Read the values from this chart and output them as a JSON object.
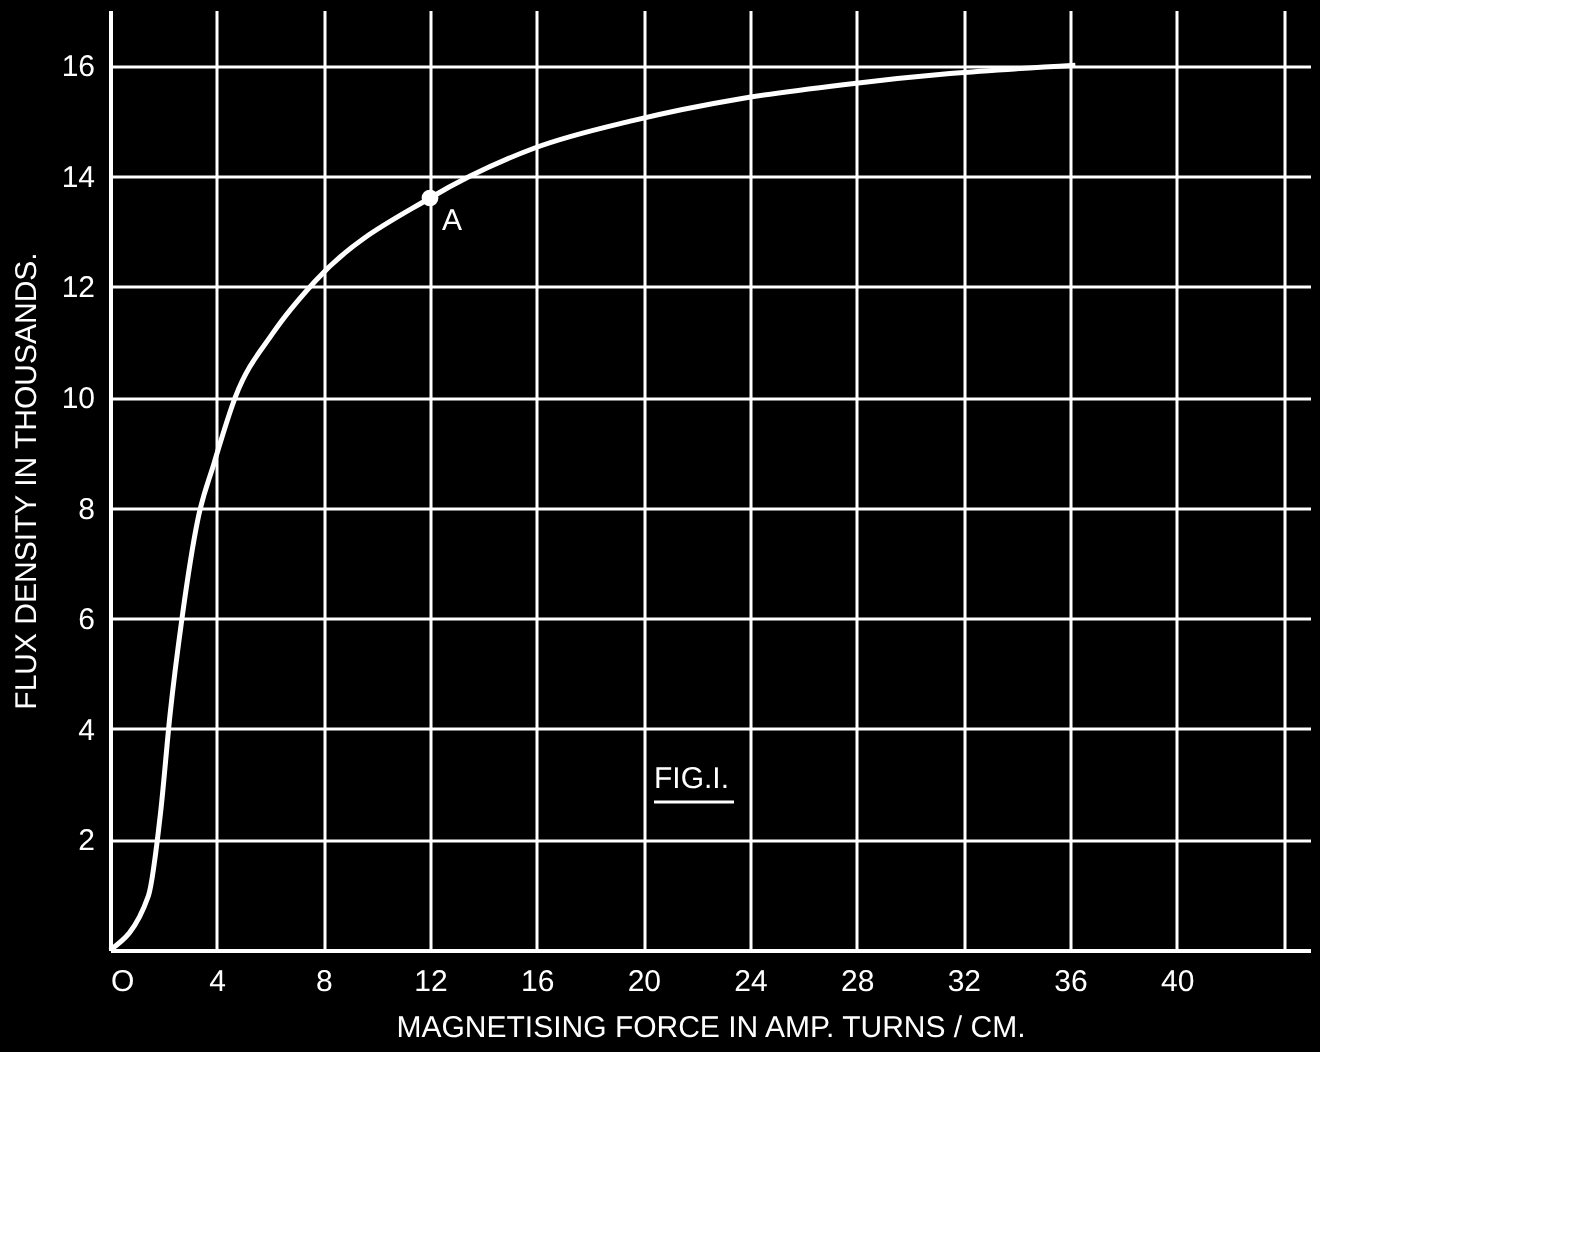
{
  "chart_data": {
    "type": "line",
    "xlabel": "MAGNETISING  FORCE  IN  AMP.  TURNS / CM.",
    "ylabel": "FLUX  DENSITY  IN  THOUSANDS.",
    "series": [
      {
        "color": "#ffffff",
        "x": [
          0,
          1.44,
          1.9,
          2.25,
          2.7,
          3.3,
          3.9,
          4.7,
          6.1,
          7.7,
          12,
          15.9,
          19.6,
          23.7,
          27.5,
          31.5,
          36.2
        ],
        "values": [
          0,
          0.98,
          2.5,
          4.25,
          6.0,
          7.8,
          8.8,
          10.0,
          11.15,
          12.1,
          13.6,
          14.5,
          15.0,
          15.4,
          15.65,
          15.85,
          16.0
        ]
      }
    ],
    "xlim": [
      0,
      45
    ],
    "ylim": [
      0,
      17
    ],
    "xticks": [
      {
        "value": 0,
        "label": "O"
      },
      4,
      8,
      12,
      16,
      20,
      24,
      28,
      32,
      36,
      40,
      {
        "value": 44,
        "label": null
      }
    ],
    "yticks": [
      2,
      4,
      6,
      8,
      10,
      12,
      14,
      16
    ],
    "grid": true,
    "marker": "none",
    "line_style": "solid",
    "annotations": [
      {
        "text": "A",
        "x": 12,
        "y": 13.6
      },
      "FIG.I."
    ]
  }
}
